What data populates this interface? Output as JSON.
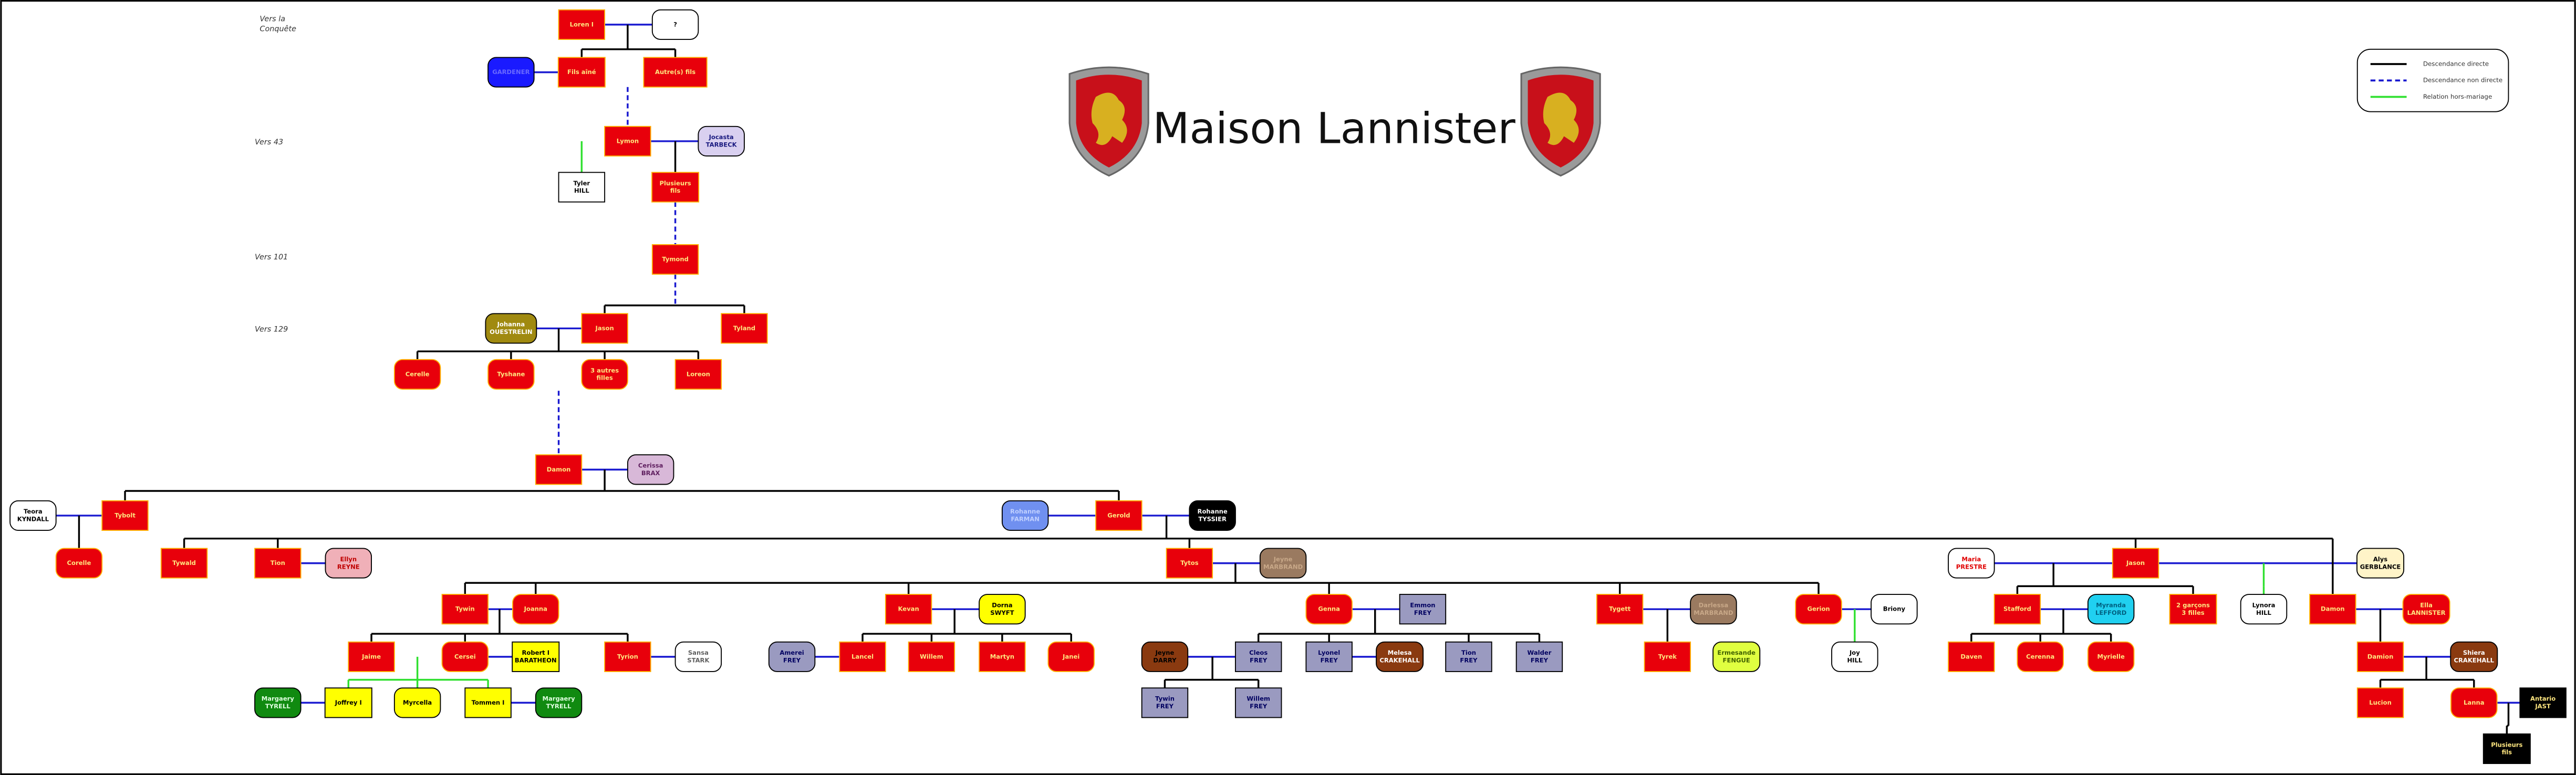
{
  "title": "Maison Lannister",
  "eras": [
    "Vers la Conquête",
    "Vers 43",
    "Vers 101",
    "Vers 129"
  ],
  "legend": [
    "Descendance directe",
    "Descendance non directe",
    "Relation hors-mariage"
  ],
  "nodes": [
    {
      "lines": [
        "Loren I"
      ],
      "fill": "#e8000b",
      "ink": "#ffe680",
      "shape": "rect"
    },
    {
      "lines": [
        "?"
      ],
      "fill": "#ffffff",
      "ink": "#000000",
      "shape": "round"
    },
    {
      "lines": [
        "Fils aîné"
      ],
      "fill": "#e8000b",
      "ink": "#ffe680",
      "shape": "rect"
    },
    {
      "lines": [
        "Autre(s) fils"
      ],
      "fill": "#e8000b",
      "ink": "#ffe680",
      "shape": "rect"
    },
    {
      "lines": [
        "GARDENER"
      ],
      "fill": "#1a1aff",
      "ink": "#6a6aff",
      "shape": "round"
    },
    {
      "lines": [
        "Lymon"
      ],
      "fill": "#e8000b",
      "ink": "#ffe680",
      "shape": "rect"
    },
    {
      "lines": [
        "Jocasta",
        "TARBECK"
      ],
      "fill": "#d9d0f0",
      "ink": "#1a1a80",
      "shape": "round"
    },
    {
      "lines": [
        "Tyler",
        "HILL"
      ],
      "fill": "#ffffff",
      "ink": "#000000",
      "shape": "rect"
    },
    {
      "lines": [
        "Plusieurs",
        "fils"
      ],
      "fill": "#e8000b",
      "ink": "#ffe680",
      "shape": "rect"
    },
    {
      "lines": [
        "Tymond"
      ],
      "fill": "#e8000b",
      "ink": "#ffe680",
      "shape": "rect"
    },
    {
      "lines": [
        "Johanna",
        "OUESTRELIN"
      ],
      "fill": "#a08a10",
      "ink": "#ffffff",
      "shape": "round"
    },
    {
      "lines": [
        "Jason"
      ],
      "fill": "#e8000b",
      "ink": "#ffe680",
      "shape": "rect"
    },
    {
      "lines": [
        "Tyland"
      ],
      "fill": "#e8000b",
      "ink": "#ffe680",
      "shape": "rect"
    },
    {
      "lines": [
        "Cerelle"
      ],
      "fill": "#e8000b",
      "ink": "#ffe680",
      "shape": "round"
    },
    {
      "lines": [
        "Tyshane"
      ],
      "fill": "#e8000b",
      "ink": "#ffe680",
      "shape": "round"
    },
    {
      "lines": [
        "3 autres",
        "filles"
      ],
      "fill": "#e8000b",
      "ink": "#ffe680",
      "shape": "round"
    },
    {
      "lines": [
        "Loreon"
      ],
      "fill": "#e8000b",
      "ink": "#ffe680",
      "shape": "rect"
    },
    {
      "lines": [
        "Damon"
      ],
      "fill": "#e8000b",
      "ink": "#ffe680",
      "shape": "rect"
    },
    {
      "lines": [
        "Cerissa",
        "BRAX"
      ],
      "fill": "#d8b8d8",
      "ink": "#602060",
      "shape": "round"
    },
    {
      "lines": [
        "Teora",
        "KYNDALL"
      ],
      "fill": "#ffffff",
      "ink": "#000000",
      "shape": "round"
    },
    {
      "lines": [
        "Tybolt"
      ],
      "fill": "#e8000b",
      "ink": "#ffe680",
      "shape": "rect"
    },
    {
      "lines": [
        "Rohanne",
        "FARMAN"
      ],
      "fill": "#7090f0",
      "ink": "#c0d0ff",
      "shape": "round"
    },
    {
      "lines": [
        "Gerold"
      ],
      "fill": "#e8000b",
      "ink": "#ffe680",
      "shape": "rect"
    },
    {
      "lines": [
        "Rohanne",
        "TYSSIER"
      ],
      "fill": "#000000",
      "ink": "#ffffff",
      "shape": "round"
    },
    {
      "lines": [
        "Corelle"
      ],
      "fill": "#e8000b",
      "ink": "#ffe680",
      "shape": "round"
    },
    {
      "lines": [
        "Tywald"
      ],
      "fill": "#e8000b",
      "ink": "#ffe680",
      "shape": "rect"
    },
    {
      "lines": [
        "Tion"
      ],
      "fill": "#e8000b",
      "ink": "#ffe680",
      "shape": "rect"
    },
    {
      "lines": [
        "Ellyn",
        "REYNE"
      ],
      "fill": "#f0b0b8",
      "ink": "#c00000",
      "shape": "round"
    },
    {
      "lines": [
        "Tytos"
      ],
      "fill": "#e8000b",
      "ink": "#ffe680",
      "shape": "rect"
    },
    {
      "lines": [
        "Jeyne",
        "MARBRAND"
      ],
      "fill": "#9a7a60",
      "ink": "#c8a888",
      "shape": "round"
    },
    {
      "lines": [
        "Maria",
        "PRESTRE"
      ],
      "fill": "#ffffff",
      "ink": "#e00000",
      "shape": "round"
    },
    {
      "lines": [
        "Jason"
      ],
      "fill": "#e8000b",
      "ink": "#ffe680",
      "shape": "rect"
    },
    {
      "lines": [
        "Alys",
        "GERBLANCE"
      ],
      "fill": "#fff4c8",
      "ink": "#000000",
      "shape": "round"
    },
    {
      "lines": [
        "Tywin"
      ],
      "fill": "#e8000b",
      "ink": "#ffe680",
      "shape": "rect"
    },
    {
      "lines": [
        "Joanna"
      ],
      "fill": "#e8000b",
      "ink": "#ffe680",
      "shape": "round"
    },
    {
      "lines": [
        "Kevan"
      ],
      "fill": "#e8000b",
      "ink": "#ffe680",
      "shape": "rect"
    },
    {
      "lines": [
        "Dorna",
        "SWYFT"
      ],
      "fill": "#ffff00",
      "ink": "#000000",
      "shape": "round"
    },
    {
      "lines": [
        "Genna"
      ],
      "fill": "#e8000b",
      "ink": "#ffe680",
      "shape": "round"
    },
    {
      "lines": [
        "Emmon",
        "FREY"
      ],
      "fill": "#9a9ac0",
      "ink": "#000060",
      "shape": "rect"
    },
    {
      "lines": [
        "Tygett"
      ],
      "fill": "#e8000b",
      "ink": "#ffe680",
      "shape": "rect"
    },
    {
      "lines": [
        "Darlessa",
        "MARBRAND"
      ],
      "fill": "#9a7a60",
      "ink": "#c8a888",
      "shape": "round"
    },
    {
      "lines": [
        "Gerion"
      ],
      "fill": "#e8000b",
      "ink": "#ffe680",
      "shape": "round"
    },
    {
      "lines": [
        "Briony"
      ],
      "fill": "#ffffff",
      "ink": "#000000",
      "shape": "round"
    },
    {
      "lines": [
        "Stafford"
      ],
      "fill": "#e8000b",
      "ink": "#ffe680",
      "shape": "rect"
    },
    {
      "lines": [
        "Myranda",
        "LEFFORD"
      ],
      "fill": "#20d0f0",
      "ink": "#006080",
      "shape": "round"
    },
    {
      "lines": [
        "2 garçons",
        "3 filles"
      ],
      "fill": "#e8000b",
      "ink": "#ffe680",
      "shape": "rect"
    },
    {
      "lines": [
        "Lynora",
        "HILL"
      ],
      "fill": "#ffffff",
      "ink": "#000000",
      "shape": "round"
    },
    {
      "lines": [
        "Damon"
      ],
      "fill": "#e8000b",
      "ink": "#ffe680",
      "shape": "rect"
    },
    {
      "lines": [
        "Ella",
        "LANNISTER"
      ],
      "fill": "#e8000b",
      "ink": "#ffe680",
      "shape": "round"
    },
    {
      "lines": [
        "Jaime"
      ],
      "fill": "#e8000b",
      "ink": "#ffe680",
      "shape": "rect"
    },
    {
      "lines": [
        "Cersei"
      ],
      "fill": "#e8000b",
      "ink": "#ffe680",
      "shape": "round"
    },
    {
      "lines": [
        "Robert I",
        "BARATHEON"
      ],
      "fill": "#ffff00",
      "ink": "#000000",
      "shape": "rect"
    },
    {
      "lines": [
        "Tyrion"
      ],
      "fill": "#e8000b",
      "ink": "#ffe680",
      "shape": "rect"
    },
    {
      "lines": [
        "Sansa",
        "STARK"
      ],
      "fill": "#ffffff",
      "ink": "#606060",
      "shape": "round"
    },
    {
      "lines": [
        "Amerei",
        "FREY"
      ],
      "fill": "#9a9ac0",
      "ink": "#000060",
      "shape": "round"
    },
    {
      "lines": [
        "Lancel"
      ],
      "fill": "#e8000b",
      "ink": "#ffe680",
      "shape": "rect"
    },
    {
      "lines": [
        "Willem"
      ],
      "fill": "#e8000b",
      "ink": "#ffe680",
      "shape": "rect"
    },
    {
      "lines": [
        "Martyn"
      ],
      "fill": "#e8000b",
      "ink": "#ffe680",
      "shape": "rect"
    },
    {
      "lines": [
        "Janei"
      ],
      "fill": "#e8000b",
      "ink": "#ffe680",
      "shape": "round"
    },
    {
      "lines": [
        "Jeyne",
        "DARRY"
      ],
      "fill": "#8a3a10",
      "ink": "#000000",
      "shape": "round"
    },
    {
      "lines": [
        "Cleos",
        "FREY"
      ],
      "fill": "#9a9ac0",
      "ink": "#000060",
      "shape": "rect"
    },
    {
      "lines": [
        "Lyonel",
        "FREY"
      ],
      "fill": "#9a9ac0",
      "ink": "#000060",
      "shape": "rect"
    },
    {
      "lines": [
        "Melesa",
        "CRAKEHALL"
      ],
      "fill": "#8a3a10",
      "ink": "#ffffff",
      "shape": "round"
    },
    {
      "lines": [
        "Tion",
        "FREY"
      ],
      "fill": "#9a9ac0",
      "ink": "#000060",
      "shape": "rect"
    },
    {
      "lines": [
        "Walder",
        "FREY"
      ],
      "fill": "#9a9ac0",
      "ink": "#000060",
      "shape": "rect"
    },
    {
      "lines": [
        "Tyrek"
      ],
      "fill": "#e8000b",
      "ink": "#ffe680",
      "shape": "rect"
    },
    {
      "lines": [
        "Ermesande",
        "FENGUE"
      ],
      "fill": "#e0ff40",
      "ink": "#406000",
      "shape": "round"
    },
    {
      "lines": [
        "Joy",
        "HILL"
      ],
      "fill": "#ffffff",
      "ink": "#000000",
      "shape": "round"
    },
    {
      "lines": [
        "Daven"
      ],
      "fill": "#e8000b",
      "ink": "#ffe680",
      "shape": "rect"
    },
    {
      "lines": [
        "Cerenna"
      ],
      "fill": "#e8000b",
      "ink": "#ffe680",
      "shape": "round"
    },
    {
      "lines": [
        "Myrielle"
      ],
      "fill": "#e8000b",
      "ink": "#ffe680",
      "shape": "round"
    },
    {
      "lines": [
        "Damion"
      ],
      "fill": "#e8000b",
      "ink": "#ffe680",
      "shape": "rect"
    },
    {
      "lines": [
        "Shiera",
        "CRAKEHALL"
      ],
      "fill": "#8a3a10",
      "ink": "#ffffff",
      "shape": "round"
    },
    {
      "lines": [
        "Margaery",
        "TYRELL"
      ],
      "fill": "#108a10",
      "ink": "#e0ffe0",
      "shape": "round"
    },
    {
      "lines": [
        "Joffrey I"
      ],
      "fill": "#ffff00",
      "ink": "#000000",
      "shape": "rect"
    },
    {
      "lines": [
        "Myrcella"
      ],
      "fill": "#ffff00",
      "ink": "#000000",
      "shape": "round"
    },
    {
      "lines": [
        "Tommen I"
      ],
      "fill": "#ffff00",
      "ink": "#000000",
      "shape": "rect"
    },
    {
      "lines": [
        "Margaery",
        "TYRELL"
      ],
      "fill": "#108a10",
      "ink": "#e0ffe0",
      "shape": "round"
    },
    {
      "lines": [
        "Tywin",
        "FREY"
      ],
      "fill": "#9a9ac0",
      "ink": "#000060",
      "shape": "rect"
    },
    {
      "lines": [
        "Willem",
        "FREY"
      ],
      "fill": "#9a9ac0",
      "ink": "#000060",
      "shape": "rect"
    },
    {
      "lines": [
        "Lucion"
      ],
      "fill": "#e8000b",
      "ink": "#ffe680",
      "shape": "rect"
    },
    {
      "lines": [
        "Lanna"
      ],
      "fill": "#e8000b",
      "ink": "#ffe680",
      "shape": "round"
    },
    {
      "lines": [
        "Antario",
        "JAST"
      ],
      "fill": "#000000",
      "ink": "#ffe680",
      "shape": "rect"
    },
    {
      "lines": [
        "Plusieurs",
        "fils"
      ],
      "fill": "#000000",
      "ink": "#ffe680",
      "shape": "rect"
    }
  ]
}
